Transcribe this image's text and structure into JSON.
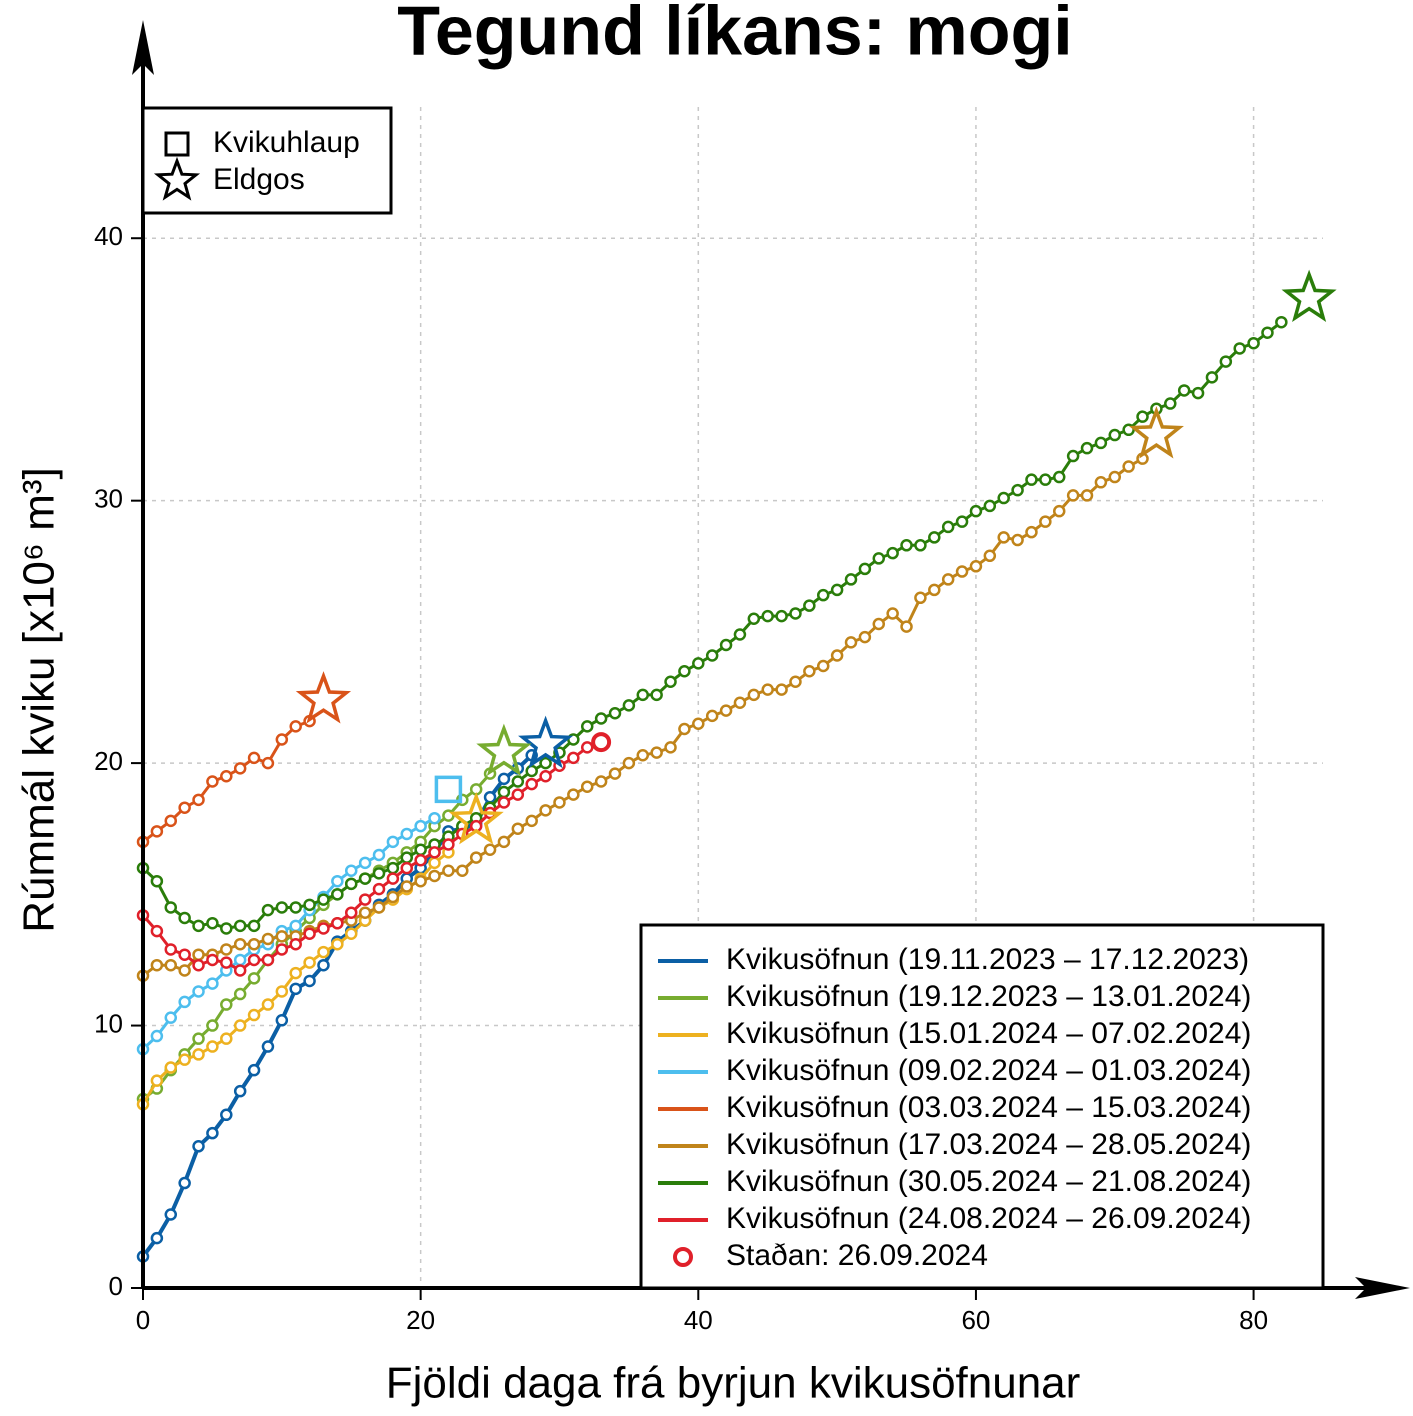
{
  "chart_data": {
    "type": "line",
    "title": "Tegund líkans: mogi",
    "x_label": "Fjöldi daga frá byrjun kvikusöfnunar",
    "y_label": "Rúmmál kviku [x10⁶ m³]",
    "xlim": [
      0,
      85
    ],
    "ylim": [
      0,
      45
    ],
    "xticks": [
      0,
      20,
      40,
      60,
      80
    ],
    "yticks": [
      0,
      10,
      20,
      30,
      40
    ],
    "grid": true,
    "event_legend": [
      {
        "name": "Kvikuhlaup",
        "shape": "square"
      },
      {
        "name": "Eldgos",
        "shape": "star"
      }
    ],
    "series": [
      {
        "name": "Kvikusöfnun (19.11.2023 – 17.12.2023)",
        "color": "#0b5fa5",
        "x": [
          0,
          1,
          2,
          3,
          4,
          5,
          6,
          7,
          8,
          9,
          10,
          11,
          12,
          13,
          14,
          15,
          16,
          17,
          18,
          19,
          20,
          21,
          22,
          23,
          24,
          25,
          26,
          27,
          28
        ],
        "values": [
          1.2,
          1.9,
          2.8,
          4.0,
          5.4,
          5.9,
          6.6,
          7.5,
          8.3,
          9.2,
          10.2,
          11.4,
          11.7,
          12.3,
          13.2,
          13.6,
          14.0,
          14.6,
          15.0,
          15.6,
          16.0,
          16.6,
          17.4,
          17.5,
          17.7,
          18.7,
          19.4,
          19.8,
          20.3
        ],
        "end": {
          "x": 29,
          "y": 20.7,
          "shape": "star"
        }
      },
      {
        "name": "Kvikusöfnun (19.12.2023 – 13.01.2024)",
        "color": "#77ac30",
        "x": [
          0,
          1,
          2,
          3,
          4,
          5,
          6,
          7,
          8,
          9,
          10,
          11,
          12,
          13,
          14,
          15,
          16,
          17,
          18,
          19,
          20,
          21,
          22,
          23,
          24,
          25
        ],
        "values": [
          7.2,
          7.6,
          8.3,
          8.9,
          9.5,
          10.0,
          10.8,
          11.2,
          11.8,
          12.5,
          13.1,
          13.6,
          14.1,
          14.6,
          15.0,
          15.4,
          15.6,
          15.9,
          16.2,
          16.6,
          17.0,
          17.6,
          18.0,
          18.6,
          19.0,
          19.6
        ],
        "end": {
          "x": 26,
          "y": 20.4,
          "shape": "star"
        }
      },
      {
        "name": "Kvikusöfnun (15.01.2024 – 07.02.2024)",
        "color": "#edb120",
        "x": [
          0,
          1,
          2,
          3,
          4,
          5,
          6,
          7,
          8,
          9,
          10,
          11,
          12,
          13,
          14,
          15,
          16,
          17,
          18,
          19,
          20,
          21,
          22
        ],
        "values": [
          7.0,
          7.9,
          8.4,
          8.7,
          8.9,
          9.2,
          9.5,
          10.0,
          10.4,
          10.8,
          11.3,
          12.0,
          12.4,
          12.8,
          13.1,
          13.5,
          14.0,
          14.5,
          14.8,
          15.2,
          15.6,
          16.2,
          16.6
        ],
        "end": {
          "x": 24,
          "y": 17.8,
          "shape": "star"
        }
      },
      {
        "name": "Kvikusöfnun (09.02.2024 – 01.03.2024)",
        "color": "#4dbeee",
        "x": [
          0,
          1,
          2,
          3,
          4,
          5,
          6,
          7,
          8,
          9,
          10,
          11,
          12,
          13,
          14,
          15,
          16,
          17,
          18,
          19,
          20,
          21
        ],
        "values": [
          9.1,
          9.6,
          10.3,
          10.9,
          11.3,
          11.6,
          12.1,
          12.5,
          12.9,
          13.1,
          13.6,
          13.8,
          14.4,
          14.9,
          15.5,
          15.9,
          16.2,
          16.5,
          17.0,
          17.3,
          17.6,
          17.9
        ],
        "end": {
          "x": 22,
          "y": 19.0,
          "shape": "square"
        }
      },
      {
        "name": "Kvikusöfnun (03.03.2024 – 15.03.2024)",
        "color": "#d95319",
        "x": [
          0,
          1,
          2,
          3,
          4,
          5,
          6,
          7,
          8,
          9,
          10,
          11,
          12
        ],
        "values": [
          17.0,
          17.4,
          17.8,
          18.3,
          18.6,
          19.3,
          19.5,
          19.8,
          20.2,
          20.0,
          20.9,
          21.4,
          21.6
        ],
        "end": {
          "x": 13,
          "y": 22.4,
          "shape": "star"
        }
      },
      {
        "name": "Kvikusöfnun (17.03.2024 – 28.05.2024)",
        "color": "#c0841a",
        "x": [
          0,
          1,
          2,
          3,
          4,
          5,
          6,
          7,
          8,
          9,
          10,
          11,
          12,
          13,
          14,
          15,
          16,
          17,
          18,
          19,
          20,
          21,
          22,
          23,
          24,
          25,
          26,
          27,
          28,
          29,
          30,
          31,
          32,
          33,
          34,
          35,
          36,
          37,
          38,
          39,
          40,
          41,
          42,
          43,
          44,
          45,
          46,
          47,
          48,
          49,
          50,
          51,
          52,
          53,
          54,
          55,
          56,
          57,
          58,
          59,
          60,
          61,
          62,
          63,
          64,
          65,
          66,
          67,
          68,
          69,
          70,
          71,
          72
        ],
        "values": [
          11.9,
          12.3,
          12.3,
          12.1,
          12.7,
          12.7,
          12.9,
          13.1,
          13.1,
          13.3,
          13.4,
          13.4,
          13.6,
          13.8,
          13.9,
          14.0,
          14.3,
          14.5,
          14.9,
          15.3,
          15.5,
          15.7,
          15.9,
          15.9,
          16.4,
          16.7,
          17.0,
          17.5,
          17.8,
          18.2,
          18.5,
          18.8,
          19.1,
          19.3,
          19.6,
          20.0,
          20.3,
          20.4,
          20.6,
          21.3,
          21.5,
          21.8,
          22.0,
          22.3,
          22.6,
          22.8,
          22.8,
          23.1,
          23.5,
          23.7,
          24.1,
          24.6,
          24.8,
          25.3,
          25.7,
          25.2,
          26.3,
          26.6,
          27.0,
          27.3,
          27.5,
          27.9,
          28.6,
          28.5,
          28.8,
          29.2,
          29.6,
          30.2,
          30.2,
          30.7,
          30.9,
          31.3,
          31.6
        ],
        "end": {
          "x": 73,
          "y": 32.5,
          "shape": "star"
        }
      },
      {
        "name": "Kvikusöfnun (30.05.2024 – 21.08.2024)",
        "color": "#2a7d0a",
        "x": [
          0,
          1,
          2,
          3,
          4,
          5,
          6,
          7,
          8,
          9,
          10,
          11,
          12,
          13,
          14,
          15,
          16,
          17,
          18,
          19,
          20,
          21,
          22,
          23,
          24,
          25,
          26,
          27,
          28,
          29,
          30,
          31,
          32,
          33,
          34,
          35,
          36,
          37,
          38,
          39,
          40,
          41,
          42,
          43,
          44,
          45,
          46,
          47,
          48,
          49,
          50,
          51,
          52,
          53,
          54,
          55,
          56,
          57,
          58,
          59,
          60,
          61,
          62,
          63,
          64,
          65,
          66,
          67,
          68,
          69,
          70,
          71,
          72,
          73,
          74,
          75,
          76,
          77,
          78,
          79,
          80,
          81,
          82
        ],
        "values": [
          16.0,
          15.5,
          14.5,
          14.1,
          13.8,
          13.9,
          13.7,
          13.8,
          13.8,
          14.4,
          14.5,
          14.5,
          14.6,
          14.8,
          15.0,
          15.4,
          15.6,
          15.8,
          16.0,
          16.4,
          16.7,
          16.9,
          17.2,
          17.6,
          17.9,
          18.3,
          18.9,
          19.3,
          19.7,
          20.0,
          20.4,
          20.9,
          21.4,
          21.7,
          21.9,
          22.2,
          22.6,
          22.6,
          23.1,
          23.5,
          23.8,
          24.1,
          24.5,
          24.9,
          25.5,
          25.6,
          25.6,
          25.7,
          26.0,
          26.4,
          26.6,
          27.0,
          27.4,
          27.8,
          28.0,
          28.3,
          28.3,
          28.6,
          29.0,
          29.2,
          29.6,
          29.8,
          30.1,
          30.4,
          30.8,
          30.8,
          30.9,
          31.7,
          32.0,
          32.2,
          32.5,
          32.7,
          33.2,
          33.5,
          33.7,
          34.2,
          34.1,
          34.7,
          35.3,
          35.8,
          36.0,
          36.4,
          36.8
        ],
        "end": {
          "x": 84,
          "y": 37.7,
          "shape": "star"
        }
      },
      {
        "name": "Kvikusöfnun (24.08.2024 – 26.09.2024)",
        "color": "#e0202a",
        "x": [
          0,
          1,
          2,
          3,
          4,
          5,
          6,
          7,
          8,
          9,
          10,
          11,
          12,
          13,
          14,
          15,
          16,
          17,
          18,
          19,
          20,
          21,
          22,
          23,
          24,
          25,
          26,
          27,
          28,
          29,
          30,
          31,
          32
        ],
        "values": [
          14.2,
          13.6,
          12.9,
          12.7,
          12.3,
          12.5,
          12.4,
          12.1,
          12.5,
          12.5,
          12.9,
          13.1,
          13.5,
          13.7,
          13.9,
          14.3,
          14.8,
          15.2,
          15.6,
          16.0,
          16.3,
          16.6,
          16.9,
          17.3,
          17.6,
          18.1,
          18.5,
          18.8,
          19.2,
          19.5,
          19.9,
          20.2,
          20.6
        ]
      }
    ],
    "current": {
      "name": "Staðan: 26.09.2024",
      "x": 33,
      "y": 20.8,
      "color": "#e0202a"
    }
  }
}
